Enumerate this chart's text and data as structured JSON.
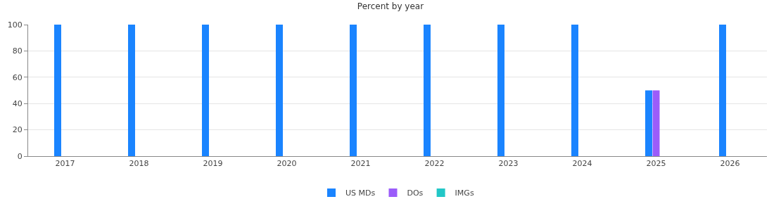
{
  "chart_data": {
    "type": "bar",
    "title": "Percent by year",
    "categories": [
      "2017",
      "2018",
      "2019",
      "2020",
      "2021",
      "2022",
      "2023",
      "2024",
      "2025",
      "2026"
    ],
    "series": [
      {
        "name": "US MDs",
        "color": "#1a84ff",
        "values": [
          100,
          100,
          100,
          100,
          100,
          100,
          100,
          100,
          50,
          100
        ]
      },
      {
        "name": "DOs",
        "color": "#9b5cfa",
        "values": [
          0,
          0,
          0,
          0,
          0,
          0,
          0,
          0,
          50,
          0
        ]
      },
      {
        "name": "IMGs",
        "color": "#22c7c7",
        "values": [
          0,
          0,
          0,
          0,
          0,
          0,
          0,
          0,
          0,
          0
        ]
      }
    ],
    "ylim": [
      0,
      100
    ],
    "yticks": [
      0,
      20,
      40,
      60,
      80,
      100
    ],
    "grid": "y",
    "legend": "bottom"
  }
}
